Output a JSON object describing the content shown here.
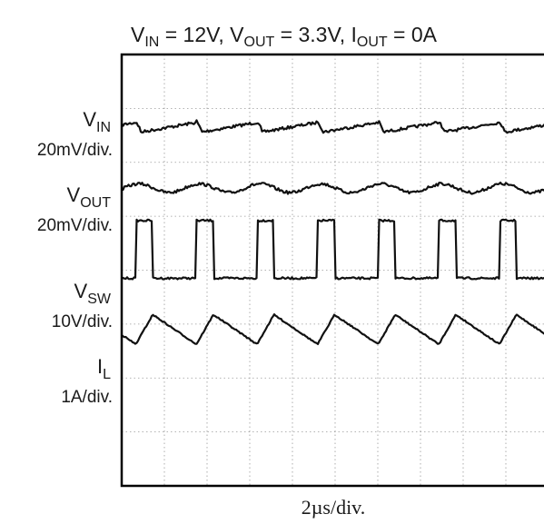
{
  "chart_data": {
    "type": "line",
    "title": {
      "parts": [
        {
          "t": "V",
          "sub": "IN",
          "after": " = 12V, "
        },
        {
          "t": "V",
          "sub": "OUT",
          "after": " = 3.3V, "
        },
        {
          "t": "I",
          "sub": "OUT",
          "after": " = 0A"
        }
      ]
    },
    "xlabel": "2µs/div.",
    "x_divisions": 10,
    "y_divisions": 8,
    "grid": true,
    "switching_period_div": 1.42,
    "channels": [
      {
        "name": "V",
        "sub": "IN",
        "scale": "20mV/div.",
        "baseline_div": 1.35,
        "shape": "ripple",
        "amplitude_div": 0.3
      },
      {
        "name": "V",
        "sub": "OUT",
        "scale": "20mV/div.",
        "baseline_div": 2.48,
        "shape": "smooth_ripple",
        "amplitude_div": 0.18
      },
      {
        "name": "V",
        "sub": "SW",
        "scale": "10V/div.",
        "baseline_div": 4.15,
        "shape": "pulse",
        "amplitude_div": 1.07
      },
      {
        "name": "I",
        "sub": "L",
        "scale": "1A/div.",
        "baseline_div": 5.1,
        "shape": "triangle",
        "amplitude_div": 0.55
      }
    ]
  }
}
